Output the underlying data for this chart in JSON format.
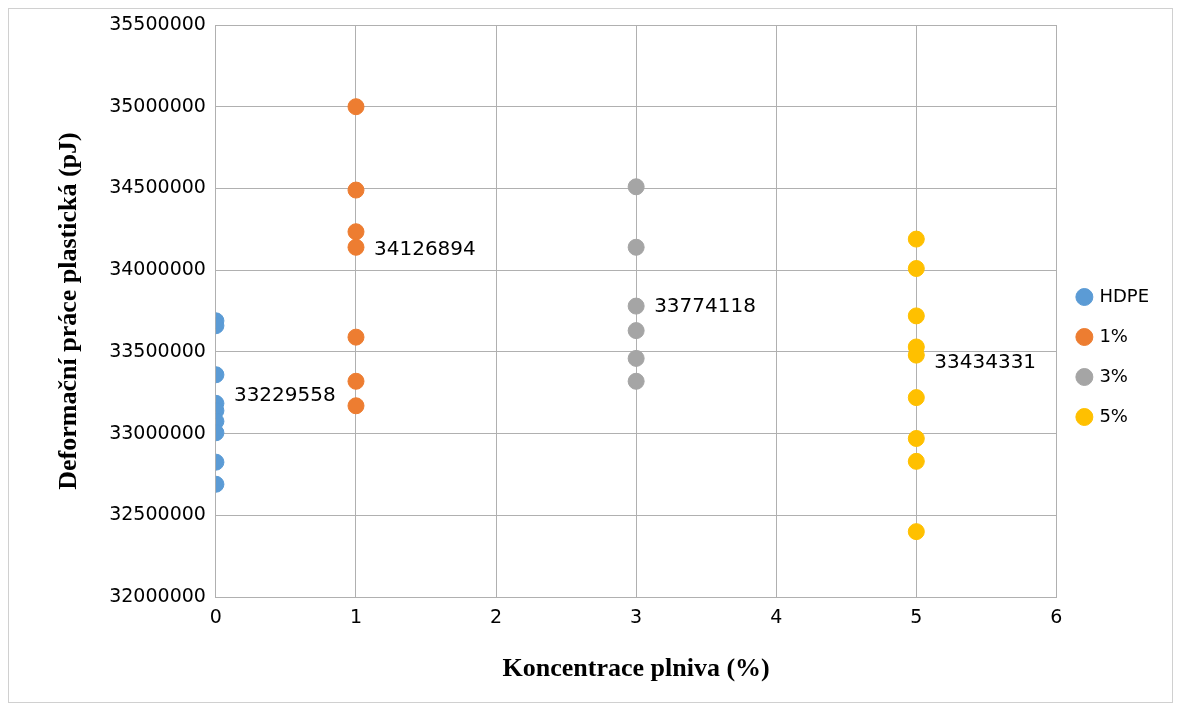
{
  "chart_data": {
    "type": "scatter",
    "xlabel": "Koncentrace plniva (%)",
    "ylabel": "Deformační práce plastická (pJ)",
    "xlim": [
      0,
      6
    ],
    "xticks": [
      0,
      1,
      2,
      3,
      4,
      5,
      6
    ],
    "ylim": [
      32000000,
      35500000
    ],
    "yticks": [
      32000000,
      32500000,
      33000000,
      33500000,
      34000000,
      34500000,
      35000000,
      35500000
    ],
    "grid": true,
    "legend": "right",
    "marker": "circle",
    "series": [
      {
        "name": "HDPE",
        "color": "#5b9bd5",
        "x": [
          0,
          0,
          0,
          0,
          0,
          0,
          0,
          0,
          0
        ],
        "values": [
          33690000,
          33660000,
          33360000,
          33185000,
          33140000,
          33075000,
          33005000,
          32825000,
          32690000
        ]
      },
      {
        "name": "1%",
        "color": "#ed7d31",
        "x": [
          1,
          1,
          1,
          1,
          1,
          1,
          1
        ],
        "values": [
          35000000,
          34490000,
          34235000,
          34140000,
          33590000,
          33320000,
          33170000
        ]
      },
      {
        "name": "3%",
        "color": "#a5a5a5",
        "x": [
          3,
          3,
          3,
          3,
          3,
          3
        ],
        "values": [
          34510000,
          34140000,
          33780000,
          33630000,
          33460000,
          33320000
        ]
      },
      {
        "name": "5%",
        "color": "#ffc000",
        "x": [
          5,
          5,
          5,
          5,
          5,
          5,
          5,
          5,
          5
        ],
        "values": [
          34190000,
          34010000,
          33720000,
          33530000,
          33480000,
          33220000,
          32970000,
          32830000,
          32400000
        ]
      }
    ],
    "annotations": [
      {
        "text": "33229558",
        "x": 0,
        "y": 33229558
      },
      {
        "text": "34126894",
        "x": 1,
        "y": 34126894
      },
      {
        "text": "33774118",
        "x": 3,
        "y": 33774118
      },
      {
        "text": "33434331",
        "x": 5,
        "y": 33434331
      }
    ]
  }
}
